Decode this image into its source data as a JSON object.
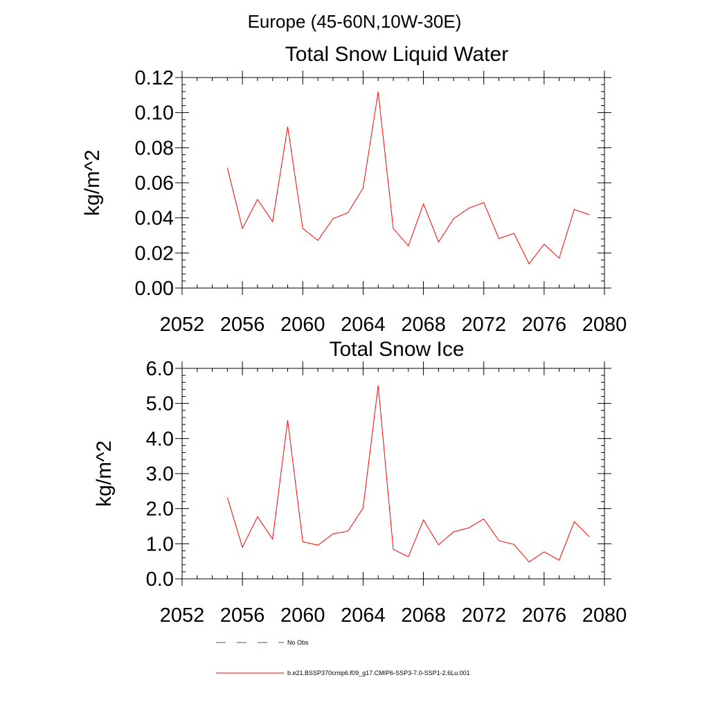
{
  "page_title": "Europe (45-60N,10W-30E)",
  "colors": {
    "series": "#ff0000",
    "no_obs": "#4d4d7a",
    "axis": "#000000"
  },
  "legend": {
    "items": [
      {
        "label": "No Obs",
        "style": "dashed",
        "color": "#4d4d7a"
      },
      {
        "label": "b.e21.BSSP370cmip6.f09_g17.CMIP6-SSP3-7.0-SSP1-2.6Lu.001",
        "style": "solid",
        "color": "#ff0000"
      }
    ]
  },
  "chart_data": [
    {
      "type": "line",
      "title": "Total Snow Liquid Water",
      "xlabel": "",
      "ylabel": "kg/m^2",
      "xlim": [
        2052,
        2080
      ],
      "ylim": [
        0,
        0.12
      ],
      "x_ticks": [
        2052,
        2056,
        2060,
        2064,
        2068,
        2072,
        2076,
        2080
      ],
      "x_tick_labels": [
        "2052",
        "2056",
        "2060",
        "2064",
        "2068",
        "2072",
        "2076",
        "2080"
      ],
      "y_ticks": [
        0,
        0.02,
        0.04,
        0.06,
        0.08,
        0.1,
        0.12
      ],
      "y_tick_labels": [
        "0.00",
        "0.02",
        "0.04",
        "0.06",
        "0.08",
        "0.10",
        "0.12"
      ],
      "grid": false,
      "series": [
        {
          "name": "b.e21.BSSP370cmip6.f09_g17.CMIP6-SSP3-7.0-SSP1-2.6Lu.001",
          "x": [
            2055,
            2056,
            2057,
            2058,
            2059,
            2060,
            2061,
            2062,
            2063,
            2064,
            2065,
            2066,
            2067,
            2068,
            2069,
            2070,
            2071,
            2072,
            2073,
            2074,
            2075,
            2076,
            2077,
            2078,
            2079
          ],
          "y": [
            0.0685,
            0.034,
            0.0505,
            0.0378,
            0.092,
            0.034,
            0.0272,
            0.0395,
            0.043,
            0.057,
            0.1118,
            0.034,
            0.024,
            0.048,
            0.0262,
            0.0395,
            0.0455,
            0.0487,
            0.0282,
            0.0312,
            0.0138,
            0.025,
            0.017,
            0.0448,
            0.0418
          ]
        }
      ]
    },
    {
      "type": "line",
      "title": "Total Snow Ice",
      "xlabel": "",
      "ylabel": "kg/m^2",
      "xlim": [
        2052,
        2080
      ],
      "ylim": [
        0,
        6
      ],
      "x_ticks": [
        2052,
        2056,
        2060,
        2064,
        2068,
        2072,
        2076,
        2080
      ],
      "x_tick_labels": [
        "2052",
        "2056",
        "2060",
        "2064",
        "2068",
        "2072",
        "2076",
        "2080"
      ],
      "y_ticks": [
        0,
        1,
        2,
        3,
        4,
        5,
        6
      ],
      "y_tick_labels": [
        "0.0",
        "1.0",
        "2.0",
        "3.0",
        "4.0",
        "5.0",
        "6.0"
      ],
      "grid": false,
      "series": [
        {
          "name": "b.e21.BSSP370cmip6.f09_g17.CMIP6-SSP3-7.0-SSP1-2.6Lu.001",
          "x": [
            2055,
            2056,
            2057,
            2058,
            2059,
            2060,
            2061,
            2062,
            2063,
            2064,
            2065,
            2066,
            2067,
            2068,
            2069,
            2070,
            2071,
            2072,
            2073,
            2074,
            2075,
            2076,
            2077,
            2078,
            2079
          ],
          "y": [
            2.32,
            0.9,
            1.77,
            1.13,
            4.52,
            1.06,
            0.96,
            1.28,
            1.36,
            2.02,
            5.51,
            0.84,
            0.63,
            1.68,
            0.97,
            1.34,
            1.45,
            1.71,
            1.09,
            0.98,
            0.48,
            0.77,
            0.53,
            1.63,
            1.2
          ]
        }
      ]
    }
  ]
}
